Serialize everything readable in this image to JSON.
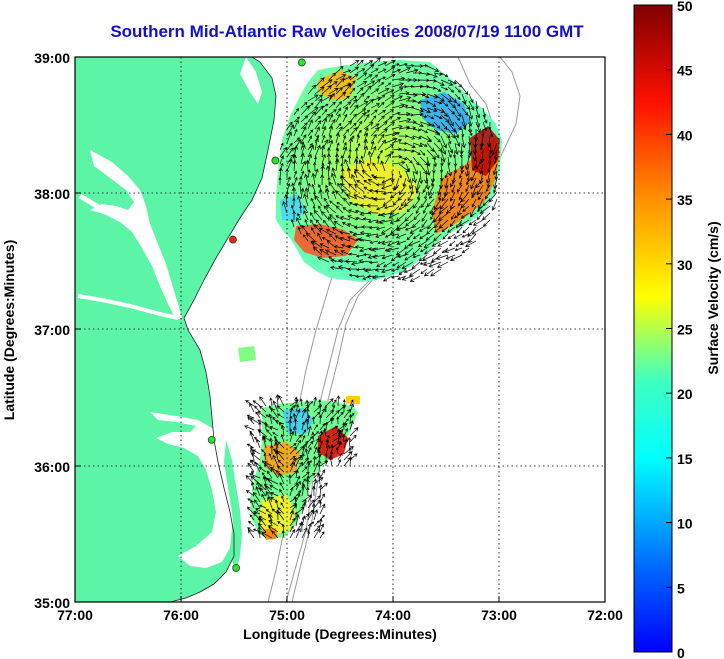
{
  "title": "Southern Mid-Atlantic Raw Velocities 2008/07/19 1100 GMT",
  "x_axis": {
    "label": "Longitude (Degrees:Minutes)",
    "ticks": [
      "77:00",
      "76:00",
      "75:00",
      "74:00",
      "73:00",
      "72:00"
    ]
  },
  "y_axis": {
    "label": "Latitude (Degrees:Minutes)",
    "ticks": [
      "39:00",
      "38:00",
      "37:00",
      "36:00",
      "35:00"
    ]
  },
  "colorbar": {
    "label": "Surface Velocity (cm/s)",
    "ticks": [
      "50",
      "45",
      "40",
      "35",
      "30",
      "25",
      "20",
      "15",
      "10",
      "5",
      "0"
    ],
    "min": 0,
    "max": 50,
    "colormap": "jet"
  },
  "map": {
    "extent": {
      "lon_min": -77,
      "lon_max": -72,
      "lat_min": 35,
      "lat_max": 39
    },
    "grid": "dotted",
    "land_color": "#5cf5a8",
    "water_color": "#ffffff",
    "bathymetry_color": "#9a9a9a",
    "arrow_color": "#000000",
    "stations": [
      {
        "lon": -74.86,
        "lat": 38.96,
        "color": "#33dd33"
      },
      {
        "lon": -75.11,
        "lat": 38.24,
        "color": "#33dd33"
      },
      {
        "lon": -75.51,
        "lat": 37.66,
        "color": "#ee2222"
      },
      {
        "lon": -75.71,
        "lat": 36.19,
        "color": "#33dd33"
      },
      {
        "lon": -75.48,
        "lat": 35.25,
        "color": "#33dd33"
      }
    ]
  }
}
